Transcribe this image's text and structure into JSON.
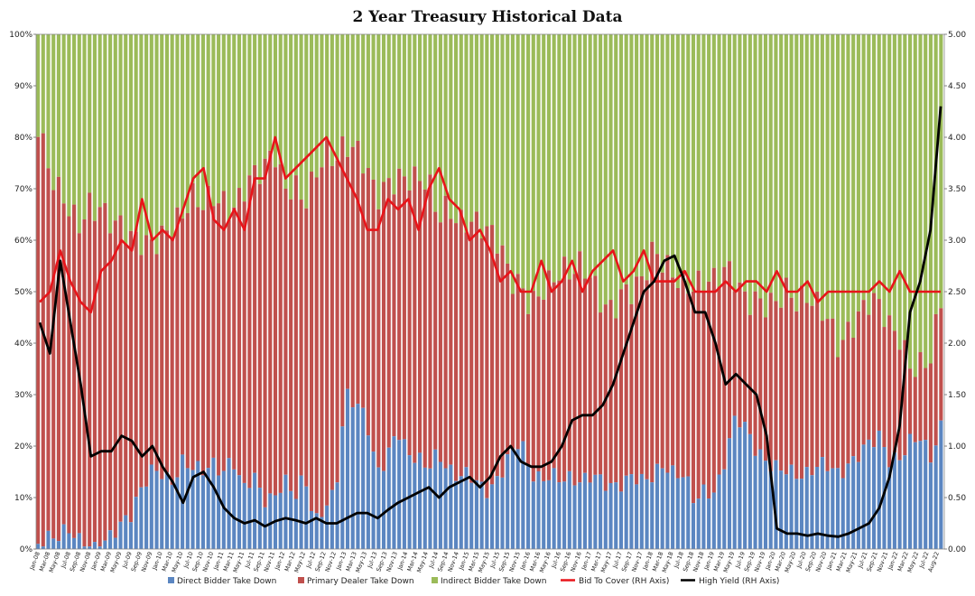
{
  "chart_data": {
    "type": "bar",
    "title": "2 Year Treasury  Historical Data",
    "left_axis": {
      "ticks": [
        "0%",
        "10%",
        "20%",
        "30%",
        "40%",
        "50%",
        "60%",
        "70%",
        "80%",
        "90%",
        "100%"
      ],
      "min": 0,
      "max": 100
    },
    "right_axis": {
      "ticks": [
        "0.00",
        "0.50",
        "1.00",
        "1.50",
        "2.00",
        "2.50",
        "3.00",
        "3.50",
        "4.00",
        "4.50",
        "5.00"
      ],
      "min": 0,
      "max": 5
    },
    "x_tick_labels": [
      "Jan-08",
      "Mar-08",
      "May-08",
      "Jul-08",
      "Sep-08",
      "Nov-08",
      "Jan-09",
      "Mar-09",
      "May-09",
      "Jul-09",
      "Sep-09",
      "Nov-09",
      "Jan-10",
      "Mar-10",
      "May-10",
      "Jul-10",
      "Sep-10",
      "Nov-10",
      "Jan-11",
      "Mar-11",
      "May-11",
      "Jul-11",
      "Sep-11",
      "Nov-11",
      "Jan-12",
      "Mar-12",
      "May-12",
      "Jul-12",
      "Sep-12",
      "Nov-12",
      "Jan-13",
      "Mar-13",
      "May-13",
      "Jul-13",
      "Sep-13",
      "Nov-13",
      "Jan-14",
      "Mar-14",
      "May-14",
      "Jul-14",
      "Sep-14",
      "Nov-14",
      "Jan-15",
      "Mar-15",
      "May-15",
      "Jul-15",
      "Sep-15",
      "Nov-15",
      "Jan-16",
      "Mar-16",
      "May-16",
      "Jul-16",
      "Sep-16",
      "Nov-16",
      "Jan-17",
      "Mar-17",
      "May-17",
      "Jul-17",
      "Sep-17",
      "Nov-17",
      "Jan-18",
      "Mar-18",
      "May-18",
      "Jul-18",
      "Sep-18",
      "Nov-18",
      "Jan-19",
      "Mar-19",
      "May-19",
      "Jul-19",
      "Sep-19",
      "Nov-19",
      "Jan-20",
      "Mar-20",
      "May-20",
      "Jul-20",
      "Sep-20",
      "Nov-20",
      "Jan-21",
      "Mar-21",
      "May-21",
      "Jul-21",
      "Sep-21",
      "Nov-21",
      "Jan-22",
      "Mar-22",
      "May-22",
      "Jul-22",
      "Aug-22"
    ],
    "direct_pct_bimonthly": [
      1,
      1,
      1,
      3,
      2,
      1,
      2,
      3,
      4,
      5,
      10,
      15,
      16,
      14,
      18,
      16,
      14,
      15,
      14,
      18,
      13,
      16,
      10,
      9,
      12,
      9,
      14,
      6,
      10,
      12,
      30,
      27,
      24,
      14,
      18,
      25,
      20,
      18,
      15,
      17,
      14,
      14,
      16,
      14,
      12,
      14,
      17,
      20,
      14,
      14,
      16,
      15,
      14,
      12,
      13,
      12,
      12,
      14,
      16,
      14,
      14,
      15,
      13,
      14,
      10,
      13,
      12,
      18,
      25,
      22,
      18,
      17,
      17,
      17,
      15,
      14,
      15,
      15,
      14,
      17,
      20,
      22,
      22,
      16,
      16,
      20,
      22,
      19,
      25
    ],
    "dealer_pct_bimonthly": [
      79,
      72,
      70,
      66,
      63,
      65,
      62,
      58,
      57,
      56,
      52,
      47,
      46,
      48,
      44,
      50,
      52,
      55,
      56,
      50,
      57,
      55,
      61,
      67,
      58,
      64,
      56,
      68,
      66,
      61,
      46,
      50,
      52,
      57,
      55,
      47,
      50,
      51,
      55,
      48,
      55,
      52,
      49,
      48,
      47,
      43,
      35,
      33,
      36,
      38,
      36,
      37,
      37,
      42,
      40,
      38,
      37,
      37,
      33,
      36,
      42,
      40,
      42,
      40,
      43,
      39,
      38,
      34,
      26,
      27,
      33,
      33,
      32,
      32,
      30,
      33,
      32,
      32,
      28,
      27,
      25,
      24,
      23,
      26,
      26,
      18,
      16,
      19,
      22
    ],
    "bid_to_cover": [
      2.4,
      2.5,
      2.9,
      2.6,
      2.4,
      2.3,
      2.7,
      2.8,
      3.0,
      2.9,
      3.4,
      3.0,
      3.1,
      3.0,
      3.3,
      3.6,
      3.7,
      3.2,
      3.1,
      3.3,
      3.1,
      3.6,
      3.6,
      4.0,
      3.6,
      3.7,
      3.8,
      3.9,
      4.0,
      3.8,
      3.6,
      3.4,
      3.1,
      3.1,
      3.4,
      3.3,
      3.4,
      3.1,
      3.5,
      3.7,
      3.4,
      3.3,
      3.0,
      3.1,
      2.9,
      2.6,
      2.7,
      2.5,
      2.5,
      2.8,
      2.5,
      2.6,
      2.8,
      2.5,
      2.7,
      2.8,
      2.9,
      2.6,
      2.7,
      2.9,
      2.6,
      2.6,
      2.6,
      2.7,
      2.5,
      2.5,
      2.5,
      2.6,
      2.5,
      2.6,
      2.6,
      2.5,
      2.7,
      2.5,
      2.5,
      2.6,
      2.4,
      2.5,
      2.5,
      2.5,
      2.5,
      2.5,
      2.6,
      2.5,
      2.7,
      2.5,
      2.5,
      2.5,
      2.5
    ],
    "high_yield": [
      2.2,
      1.9,
      2.8,
      2.2,
      1.6,
      0.9,
      0.95,
      0.95,
      1.1,
      1.05,
      0.9,
      1.0,
      0.8,
      0.65,
      0.45,
      0.7,
      0.75,
      0.6,
      0.4,
      0.3,
      0.25,
      0.28,
      0.22,
      0.27,
      0.3,
      0.28,
      0.25,
      0.3,
      0.25,
      0.25,
      0.3,
      0.35,
      0.35,
      0.3,
      0.38,
      0.45,
      0.5,
      0.55,
      0.6,
      0.5,
      0.6,
      0.65,
      0.7,
      0.6,
      0.7,
      0.9,
      1.0,
      0.85,
      0.8,
      0.8,
      0.85,
      1.0,
      1.25,
      1.3,
      1.3,
      1.4,
      1.6,
      1.9,
      2.2,
      2.5,
      2.6,
      2.8,
      2.85,
      2.6,
      2.3,
      2.3,
      2.0,
      1.6,
      1.7,
      1.6,
      1.5,
      1.1,
      0.2,
      0.15,
      0.15,
      0.13,
      0.15,
      0.13,
      0.12,
      0.15,
      0.2,
      0.25,
      0.4,
      0.7,
      1.2,
      2.3,
      2.6,
      3.1,
      4.3
    ]
  },
  "legend": [
    {
      "label": "Direct Bidder Take Down",
      "color": "#5b86c1",
      "kind": "box"
    },
    {
      "label": "Primary Dealer Take Down",
      "color": "#c0504d",
      "kind": "box"
    },
    {
      "label": "Indirect Bidder Take Down",
      "color": "#9bbb59",
      "kind": "box"
    },
    {
      "label": "Bid To Cover (RH Axis)",
      "color": "#e8141a",
      "kind": "line"
    },
    {
      "label": "High Yield (RH Axis)",
      "color": "#000000",
      "kind": "line"
    }
  ],
  "colors": {
    "direct": "#5b86c1",
    "dealer": "#c0504d",
    "indirect": "#9bbb59",
    "bid_to_cover": "#e8141a",
    "high_yield": "#000000"
  }
}
